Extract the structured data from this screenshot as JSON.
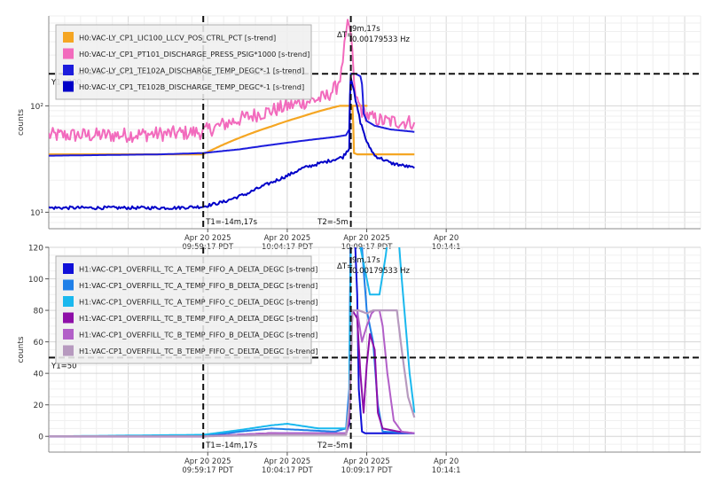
{
  "chart_data": [
    {
      "type": "line",
      "ylabel": "counts",
      "yscale": "log",
      "ylim": [
        7,
        700
      ],
      "yticks": [
        {
          "value": 10,
          "label": "10¹"
        },
        {
          "value": 100,
          "label": "10²"
        }
      ],
      "xlim_min": [
        -24,
        17
      ],
      "xticks": [
        {
          "value": -14,
          "line1": "Apr 20 2025",
          "line2": "09:59:17 PDT"
        },
        {
          "value": -9,
          "line1": "Apr 20 2025",
          "line2": "10:04:17 PDT"
        },
        {
          "value": -4,
          "line1": "Apr 20 2025",
          "line2": "10:09:17 PDT"
        },
        {
          "value": 1,
          "line1": "Apr 20",
          "line2": "10:14:1"
        }
      ],
      "grid": true,
      "legend_position": "top-left",
      "cursors": {
        "t1": -14.283,
        "t2": -5,
        "t1_label": "T1=-14m,17s",
        "t2_label": "T2=-5m",
        "y1": 200,
        "y1_label": "Y1=200"
      },
      "delta": {
        "label": "ΔT=",
        "value": "9m,17s",
        "freq": "0.00179533 Hz"
      },
      "series": [
        {
          "name": "H0:VAC-LY_CP1_LIC100_LLCV_POS_CTRL_PCT [s-trend]",
          "color": "#f5a623",
          "width": 2.2,
          "points": [
            [
              -24,
              35
            ],
            [
              -14.3,
              35
            ],
            [
              -13.5,
              40
            ],
            [
              -12,
              50
            ],
            [
              -10,
              64
            ],
            [
              -8,
              80
            ],
            [
              -7,
              89
            ],
            [
              -5.7,
              100
            ],
            [
              -4,
              100
            ],
            [
              -5,
              100
            ],
            [
              -4.9,
              100
            ],
            [
              -4.8,
              36
            ],
            [
              -4.6,
              35
            ],
            [
              -1,
              35
            ]
          ]
        },
        {
          "name": "H0:VAC-LY_CP1_PT101_DISCHARGE_PRESS_PSIG*1000 [s-trend]",
          "color": "#f26bbd",
          "width": 2,
          "points": [
            [
              -24,
              53
            ],
            [
              -20,
              53
            ],
            [
              -16,
              55
            ],
            [
              -14.3,
              57
            ],
            [
              -13.5,
              63
            ],
            [
              -12,
              75
            ],
            [
              -10,
              90
            ],
            [
              -8,
              108
            ],
            [
              -6.6,
              120
            ],
            [
              -5.9,
              150
            ],
            [
              -5.6,
              200
            ],
            [
              -5.4,
              350
            ],
            [
              -5.2,
              550
            ],
            [
              -5.0,
              480
            ],
            [
              -4.8,
              150
            ],
            [
              -4.6,
              110
            ],
            [
              -4.3,
              90
            ],
            [
              -3.8,
              78
            ],
            [
              -3,
              72
            ],
            [
              -1,
              70
            ]
          ],
          "noise": 0.07
        },
        {
          "name": "H0:VAC-LY_CP1_TE102A_DISCHARGE_TEMP_DEGC*-1 [s-trend]",
          "color": "#1c1cdc",
          "width": 2,
          "points": [
            [
              -24,
              34
            ],
            [
              -17,
              35
            ],
            [
              -14.3,
              36
            ],
            [
              -12,
              39
            ],
            [
              -10,
              43
            ],
            [
              -8,
              47
            ],
            [
              -6,
              51
            ],
            [
              -5.3,
              53
            ],
            [
              -5.1,
              60
            ],
            [
              -5.0,
              200
            ],
            [
              -4.7,
              200
            ],
            [
              -4.4,
              190
            ],
            [
              -4.3,
              160
            ],
            [
              -4.2,
              85
            ],
            [
              -4.0,
              72
            ],
            [
              -3.5,
              65
            ],
            [
              -2.5,
              60
            ],
            [
              -1,
              57
            ]
          ]
        },
        {
          "name": "H0:VAC-LY_CP1_TE102B_DISCHARGE_TEMP_DEGC*-1 [s-trend]",
          "color": "#0000c8",
          "width": 2,
          "points": [
            [
              -24,
              11
            ],
            [
              -16,
              11
            ],
            [
              -14.3,
              11.3
            ],
            [
              -13,
              12.5
            ],
            [
              -11.5,
              15
            ],
            [
              -10,
              19
            ],
            [
              -9,
              22
            ],
            [
              -8,
              26
            ],
            [
              -6.5,
              30
            ],
            [
              -5.5,
              33
            ],
            [
              -5.1,
              40
            ],
            [
              -5.0,
              190
            ],
            [
              -4.9,
              160
            ],
            [
              -4.7,
              110
            ],
            [
              -4.4,
              70
            ],
            [
              -4.0,
              45
            ],
            [
              -3.5,
              34
            ],
            [
              -2.5,
              29
            ],
            [
              -1,
              26
            ]
          ],
          "noise": 0.015
        }
      ]
    },
    {
      "type": "line",
      "ylabel": "counts",
      "yscale": "linear",
      "ylim": [
        -10,
        120
      ],
      "yticks": [
        {
          "value": 0,
          "label": "0"
        },
        {
          "value": 20,
          "label": "20"
        },
        {
          "value": 40,
          "label": "40"
        },
        {
          "value": 60,
          "label": "60"
        },
        {
          "value": 80,
          "label": "80"
        },
        {
          "value": 100,
          "label": "100"
        },
        {
          "value": 120,
          "label": "120"
        }
      ],
      "xlim_min": [
        -24,
        17
      ],
      "xticks": [
        {
          "value": -14,
          "line1": "Apr 20 2025",
          "line2": "09:59:17 PDT"
        },
        {
          "value": -9,
          "line1": "Apr 20 2025",
          "line2": "10:04:17 PDT"
        },
        {
          "value": -4,
          "line1": "Apr 20 2025",
          "line2": "10:09:17 PDT"
        },
        {
          "value": 1,
          "line1": "Apr 20",
          "line2": "10:14:1"
        }
      ],
      "grid": true,
      "legend_position": "top-left",
      "cursors": {
        "t1": -14.283,
        "t2": -5,
        "t1_label": "T1=-14m,17s",
        "t2_label": "T2=-5m",
        "y1": 50,
        "y1_label": "Y1=50"
      },
      "delta": {
        "label": "ΔT=",
        "value": "9m,17s",
        "freq": "0.00179533 Hz"
      },
      "series": [
        {
          "name": "H1:VAC-CP1_OVERFILL_TC_A_TEMP_FIFO_A_DELTA_DEGC [s-trend]",
          "color": "#1010d8",
          "width": 2,
          "points": [
            [
              -24,
              0
            ],
            [
              -14.3,
              0
            ],
            [
              -10,
              2
            ],
            [
              -7,
              2
            ],
            [
              -5.3,
              2
            ],
            [
              -5.1,
              8
            ],
            [
              -5.0,
              140
            ],
            [
              -4.8,
              140
            ],
            [
              -4.6,
              90
            ],
            [
              -4.5,
              30
            ],
            [
              -4.3,
              3
            ],
            [
              -4.1,
              2
            ],
            [
              -1,
              2
            ]
          ]
        },
        {
          "name": "H1:VAC-CP1_OVERFILL_TC_A_TEMP_FIFO_B_DELTA_DEGC [s-trend]",
          "color": "#1f7fe8",
          "width": 2,
          "points": [
            [
              -24,
              0
            ],
            [
              -14.3,
              0
            ],
            [
              -12,
              3
            ],
            [
              -10,
              5
            ],
            [
              -8,
              4
            ],
            [
              -6,
              3
            ],
            [
              -5.3,
              5
            ],
            [
              -5.1,
              30
            ],
            [
              -5.0,
              140
            ],
            [
              -4.6,
              140
            ],
            [
              -4.3,
              120
            ],
            [
              -4.0,
              80
            ],
            [
              -3.6,
              60
            ],
            [
              -3.3,
              20
            ],
            [
              -3.0,
              3
            ],
            [
              -1,
              2
            ]
          ]
        },
        {
          "name": "H1:VAC-CP1_OVERFILL_TC_A_TEMP_FIFO_C_DELTA_DEGC [s-trend]",
          "color": "#1ab8ee",
          "width": 2,
          "points": [
            [
              -24,
              0
            ],
            [
              -14.3,
              1
            ],
            [
              -12,
              4
            ],
            [
              -10,
              7
            ],
            [
              -9,
              8
            ],
            [
              -7,
              5
            ],
            [
              -5.3,
              5
            ],
            [
              -5.1,
              20
            ],
            [
              -5.0,
              120
            ],
            [
              -4.6,
              130
            ],
            [
              -4.2,
              110
            ],
            [
              -3.8,
              90
            ],
            [
              -3.2,
              90
            ],
            [
              -2.8,
              115
            ],
            [
              -2.5,
              140
            ],
            [
              -2.1,
              140
            ],
            [
              -1.8,
              100
            ],
            [
              -1.3,
              40
            ],
            [
              -1,
              15
            ]
          ]
        },
        {
          "name": "H1:VAC-CP1_OVERFILL_TC_B_TEMP_FIFO_A_DELTA_DEGC [s-trend]",
          "color": "#8e0fa8",
          "width": 2,
          "points": [
            [
              -24,
              0
            ],
            [
              -14.3,
              0
            ],
            [
              -10,
              2
            ],
            [
              -7,
              1
            ],
            [
              -5.3,
              1
            ],
            [
              -5.1,
              10
            ],
            [
              -4.9,
              80
            ],
            [
              -4.6,
              75
            ],
            [
              -4.4,
              40
            ],
            [
              -4.2,
              15
            ],
            [
              -4.0,
              45
            ],
            [
              -3.8,
              65
            ],
            [
              -3.5,
              55
            ],
            [
              -3.3,
              15
            ],
            [
              -3.0,
              5
            ],
            [
              -2,
              3
            ],
            [
              -1,
              2
            ]
          ]
        },
        {
          "name": "H1:VAC-CP1_OVERFILL_TC_B_TEMP_FIFO_B_DELTA_DEGC [s-trend]",
          "color": "#b25fc8",
          "width": 2,
          "points": [
            [
              -24,
              0
            ],
            [
              -14.3,
              0
            ],
            [
              -10,
              2
            ],
            [
              -7,
              2
            ],
            [
              -5.3,
              2
            ],
            [
              -5.1,
              15
            ],
            [
              -4.9,
              80
            ],
            [
              -4.6,
              80
            ],
            [
              -4.3,
              60
            ],
            [
              -4.0,
              70
            ],
            [
              -3.7,
              78
            ],
            [
              -3.5,
              80
            ],
            [
              -3.2,
              80
            ],
            [
              -3.0,
              70
            ],
            [
              -2.7,
              40
            ],
            [
              -2.3,
              10
            ],
            [
              -1.8,
              3
            ],
            [
              -1,
              2
            ]
          ]
        },
        {
          "name": "H1:VAC-CP1_OVERFILL_TC_B_TEMP_FIFO_C_DELTA_DEGC [s-trend]",
          "color": "#b79abf",
          "width": 2.2,
          "points": [
            [
              -24,
              0
            ],
            [
              -14.3,
              0
            ],
            [
              -10,
              1
            ],
            [
              -7,
              1
            ],
            [
              -5.3,
              1
            ],
            [
              -5.1,
              20
            ],
            [
              -4.9,
              80
            ],
            [
              -4.5,
              80
            ],
            [
              -4.0,
              78
            ],
            [
              -3.6,
              80
            ],
            [
              -3.0,
              80
            ],
            [
              -2.5,
              80
            ],
            [
              -2.1,
              80
            ],
            [
              -1.8,
              55
            ],
            [
              -1.4,
              25
            ],
            [
              -1,
              12
            ]
          ]
        }
      ]
    }
  ]
}
